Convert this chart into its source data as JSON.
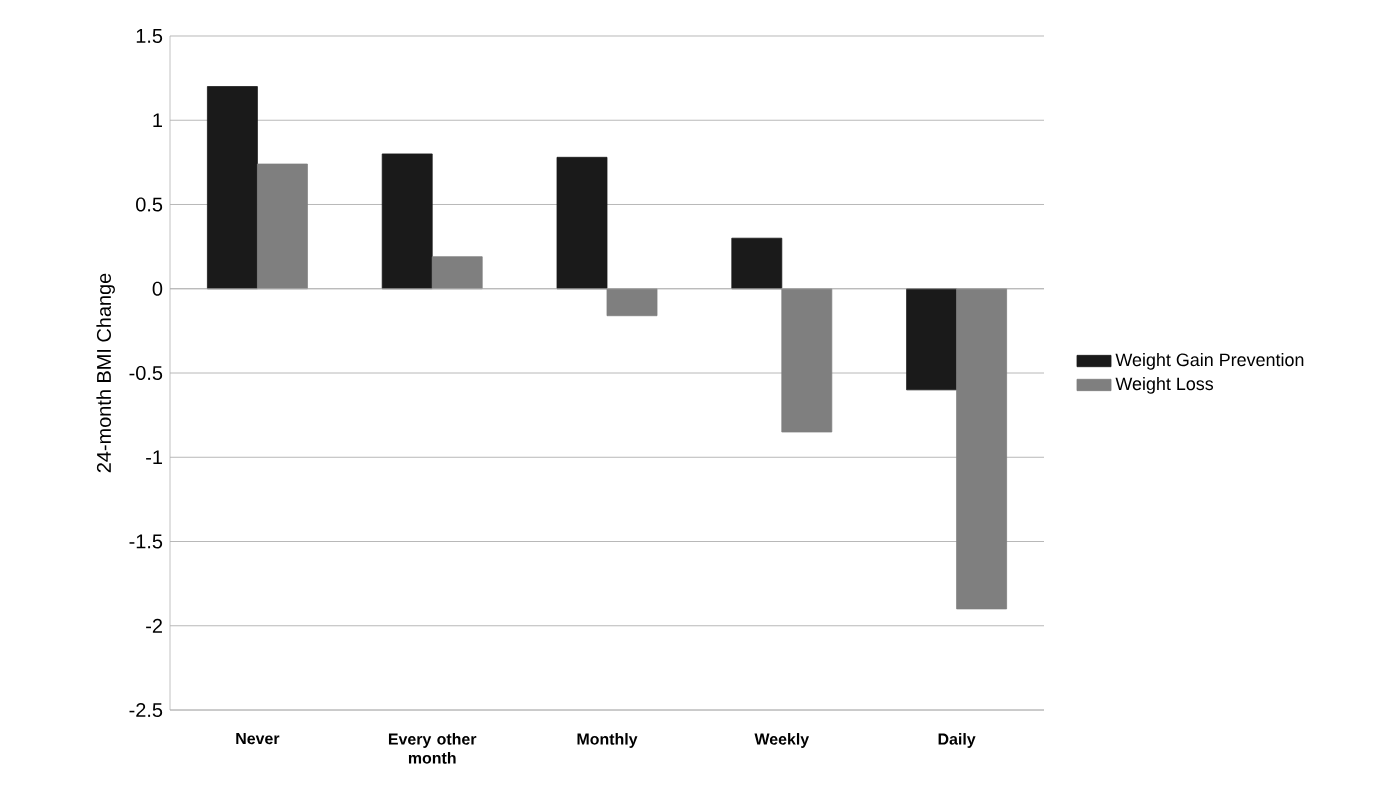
{
  "chart_data": {
    "type": "bar",
    "ylabel": "24-month BMI Change",
    "categories": [
      "Never",
      "Every other month",
      "Monthly",
      "Weekly",
      "Daily"
    ],
    "series": [
      {
        "name": "Weight Gain Prevention",
        "color": "#1a1a1a",
        "values": [
          1.2,
          0.8,
          0.78,
          0.3,
          -0.6
        ]
      },
      {
        "name": "Weight Loss",
        "color": "#7f7f7f",
        "values": [
          0.74,
          0.19,
          -0.16,
          -0.85,
          -1.9
        ]
      }
    ],
    "ylim": [
      -2.5,
      1.5
    ],
    "yticks": [
      -2.5,
      -2,
      -1.5,
      -1,
      -0.5,
      0,
      0.5,
      1,
      1.5
    ],
    "grid": "y",
    "legend": "right"
  }
}
